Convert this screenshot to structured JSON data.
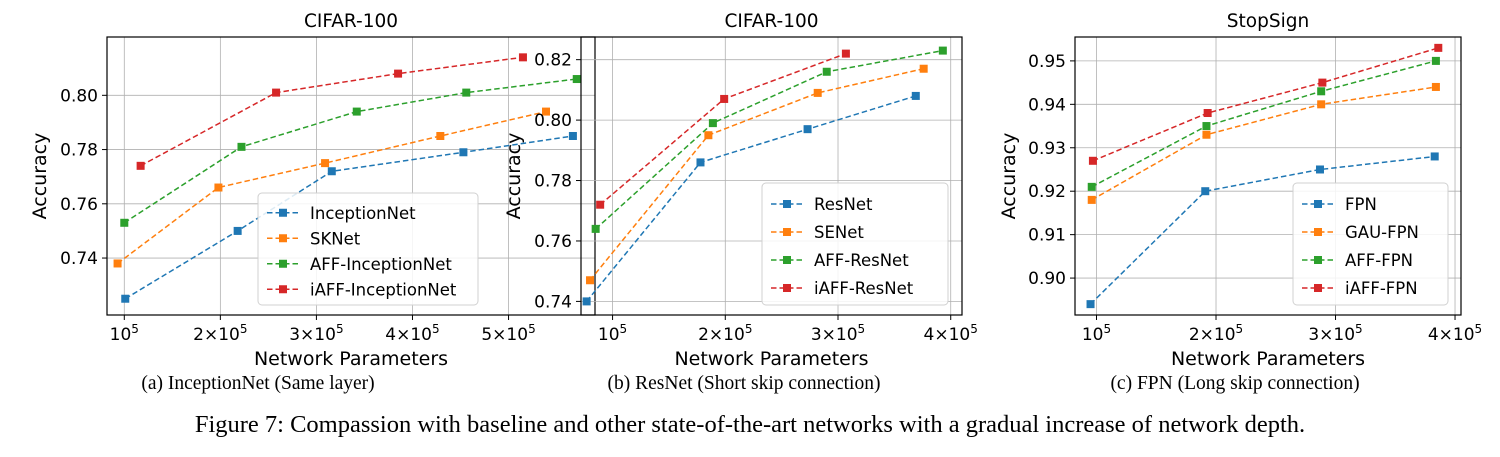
{
  "figure_caption": "Figure 7: Compassion with baseline and other state-of-the-art networks with a gradual increase of network depth.",
  "colors": {
    "c0": "#1f77b4",
    "c1": "#ff7f0e",
    "c2": "#2ca02c",
    "c3": "#d62728"
  },
  "chart_data": [
    {
      "type": "line",
      "title": "CIFAR-100",
      "caption": "(a) InceptionNet (Same layer)",
      "xlabel": "Network Parameters",
      "ylabel": "Accuracy",
      "xlim": [
        82000,
        590000
      ],
      "ylim": [
        0.719,
        0.8215
      ],
      "xticks": [
        100000,
        200000,
        300000,
        400000,
        500000
      ],
      "xtick_labels": [
        {
          "base": "10",
          "exp": "5"
        },
        {
          "base": "2×10",
          "exp": "5"
        },
        {
          "base": "3×10",
          "exp": "5"
        },
        {
          "base": "4×10",
          "exp": "5"
        },
        {
          "base": "5×10",
          "exp": "5"
        }
      ],
      "yticks": [
        0.74,
        0.76,
        0.78,
        0.8
      ],
      "ytick_labels": [
        "0.74",
        "0.76",
        "0.78",
        "0.80"
      ],
      "legend": "lower right",
      "series": [
        {
          "name": "InceptionNet",
          "color": "#1f77b4",
          "x": [
            101000,
            218000,
            316000,
            453000,
            567000
          ],
          "y": [
            0.725,
            0.75,
            0.772,
            0.779,
            0.785
          ]
        },
        {
          "name": "SKNet",
          "color": "#ff7f0e",
          "x": [
            93000,
            198000,
            309000,
            429000,
            539000
          ],
          "y": [
            0.738,
            0.766,
            0.775,
            0.785,
            0.794
          ]
        },
        {
          "name": "AFF-InceptionNet",
          "color": "#2ca02c",
          "x": [
            100000,
            222000,
            342000,
            456000,
            571000
          ],
          "y": [
            0.753,
            0.781,
            0.794,
            0.801,
            0.806
          ]
        },
        {
          "name": "iAFF-InceptionNet",
          "color": "#d62728",
          "x": [
            117000,
            258000,
            385000,
            515000
          ],
          "y": [
            0.774,
            0.801,
            0.808,
            0.814
          ]
        }
      ]
    },
    {
      "type": "line",
      "title": "CIFAR-100",
      "caption": "(b) ResNet (Short skip connection)",
      "xlabel": "Network Parameters",
      "ylabel": "Accuracy",
      "xlim": [
        72000,
        410000
      ],
      "ylim": [
        0.7355,
        0.8275
      ],
      "xticks": [
        100000,
        200000,
        300000,
        400000
      ],
      "xtick_labels": [
        {
          "base": "10",
          "exp": "5"
        },
        {
          "base": "2×10",
          "exp": "5"
        },
        {
          "base": "3×10",
          "exp": "5"
        },
        {
          "base": "4×10",
          "exp": "5"
        }
      ],
      "yticks": [
        0.74,
        0.76,
        0.78,
        0.8,
        0.82
      ],
      "ytick_labels": [
        "0.74",
        "0.76",
        "0.78",
        "0.80",
        "0.82"
      ],
      "legend": "lower right",
      "series": [
        {
          "name": "ResNet",
          "color": "#1f77b4",
          "x": [
            77000,
            178000,
            273000,
            369000
          ],
          "y": [
            0.74,
            0.786,
            0.797,
            0.808
          ]
        },
        {
          "name": "SENet",
          "color": "#ff7f0e",
          "x": [
            80000,
            185000,
            282000,
            376000
          ],
          "y": [
            0.747,
            0.795,
            0.809,
            0.817
          ]
        },
        {
          "name": "AFF-ResNet",
          "color": "#2ca02c",
          "x": [
            85000,
            189000,
            290000,
            393000
          ],
          "y": [
            0.764,
            0.799,
            0.816,
            0.823
          ]
        },
        {
          "name": "iAFF-ResNet",
          "color": "#d62728",
          "x": [
            89000,
            199000,
            307000
          ],
          "y": [
            0.772,
            0.807,
            0.822
          ]
        }
      ]
    },
    {
      "type": "line",
      "title": "StopSign",
      "caption": "(c) FPN (Long skip connection)",
      "xlabel": "Network Parameters",
      "ylabel": "Accuracy",
      "xlim": [
        82000,
        405000
      ],
      "ylim": [
        0.8915,
        0.9555
      ],
      "xticks": [
        100000,
        200000,
        300000,
        400000
      ],
      "xtick_labels": [
        {
          "base": "10",
          "exp": "5"
        },
        {
          "base": "2×10",
          "exp": "5"
        },
        {
          "base": "3×10",
          "exp": "5"
        },
        {
          "base": "4×10",
          "exp": "5"
        }
      ],
      "yticks": [
        0.9,
        0.91,
        0.92,
        0.93,
        0.94,
        0.95
      ],
      "ytick_labels": [
        "0.90",
        "0.91",
        "0.92",
        "0.93",
        "0.94",
        "0.95"
      ],
      "legend": "lower right",
      "series": [
        {
          "name": "FPN",
          "color": "#1f77b4",
          "x": [
            95000,
            191000,
            287000,
            383000
          ],
          "y": [
            0.894,
            0.92,
            0.925,
            0.928
          ]
        },
        {
          "name": "GAU-FPN",
          "color": "#ff7f0e",
          "x": [
            96000,
            192000,
            288000,
            384000
          ],
          "y": [
            0.918,
            0.933,
            0.94,
            0.944
          ]
        },
        {
          "name": "AFF-FPN",
          "color": "#2ca02c",
          "x": [
            96000,
            192000,
            288000,
            384000
          ],
          "y": [
            0.921,
            0.935,
            0.943,
            0.95
          ]
        },
        {
          "name": "iAFF-FPN",
          "color": "#d62728",
          "x": [
            97000,
            193000,
            289000,
            386000
          ],
          "y": [
            0.927,
            0.938,
            0.945,
            0.953
          ]
        }
      ]
    }
  ]
}
